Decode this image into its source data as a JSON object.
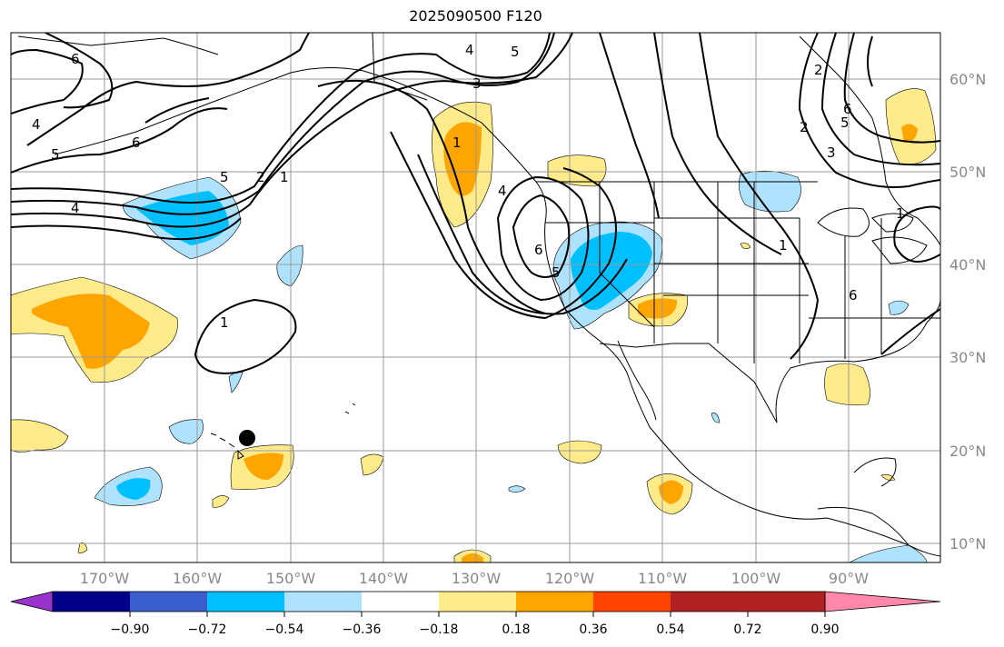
{
  "title": "2025090500 F120",
  "lat_labels": [
    "60°N",
    "50°N",
    "40°N",
    "30°N",
    "20°N",
    "10°N"
  ],
  "lon_labels": [
    "170°W",
    "160°W",
    "150°W",
    "140°W",
    "130°W",
    "120°W",
    "110°W",
    "100°W",
    "90°W"
  ],
  "colorbar": {
    "colors": [
      "#9932cc",
      "#00008b",
      "#3a5fcd",
      "#00bfff",
      "#aee2ff",
      "#ffffff",
      "#ffeb8a",
      "#ffa500",
      "#ff4500",
      "#b22222",
      "#ff88aa"
    ],
    "tick_labels": [
      "−0.90",
      "−0.72",
      "−0.54",
      "−0.36",
      "−0.18",
      "0.18",
      "0.36",
      "0.54",
      "0.72",
      "0.90"
    ]
  },
  "contour_labels": [
    "6",
    "4",
    "5",
    "6",
    "5",
    "2",
    "1",
    "4",
    "1",
    "5",
    "4",
    "3",
    "6",
    "5",
    "4",
    "2",
    "1",
    "6",
    "5",
    "3",
    "2",
    "1",
    "1",
    "6"
  ],
  "marker": "Hawaii point"
}
